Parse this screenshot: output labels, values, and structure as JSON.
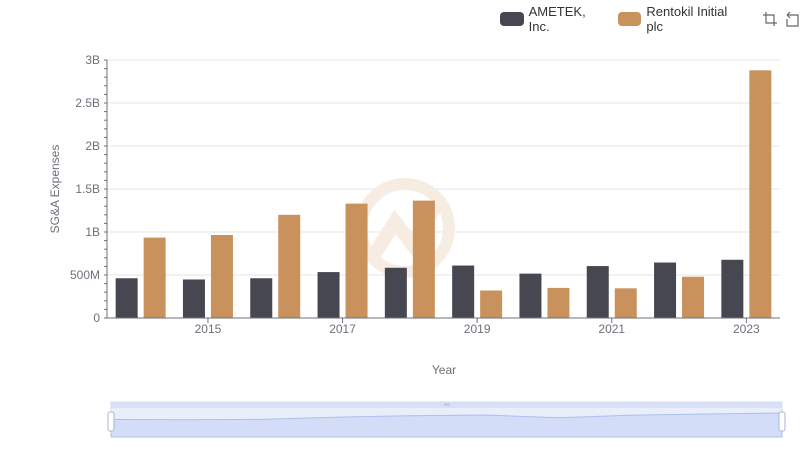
{
  "legend": {
    "items": [
      {
        "label": "AMETEK, Inc.",
        "color": "#474752"
      },
      {
        "label": "Rentokil Initial plc",
        "color": "#c9915c"
      }
    ]
  },
  "toolbox": {
    "icons": [
      "zoom-icon",
      "restore-icon"
    ]
  },
  "chart_data": {
    "type": "bar",
    "xlabel": "Year",
    "ylabel": "SG&A Expenses",
    "x": [
      2014,
      2015,
      2016,
      2017,
      2018,
      2019,
      2020,
      2021,
      2022,
      2023
    ],
    "x_tick_labels": [
      "2015",
      "2017",
      "2019",
      "2021",
      "2023"
    ],
    "y_tick_labels": [
      "0",
      "500M",
      "1B",
      "1.5B",
      "2B",
      "2.5B",
      "3B"
    ],
    "ylim": [
      0,
      3000000000
    ],
    "grid": true,
    "legend_position": "top-right",
    "series": [
      {
        "name": "AMETEK, Inc.",
        "color": "#474752",
        "values": [
          462000000,
          448000000,
          462000000,
          534000000,
          584000000,
          610000000,
          516000000,
          604000000,
          645000000,
          677000000
        ]
      },
      {
        "name": "Rentokil Initial plc",
        "color": "#c9915c",
        "values": [
          935000000,
          965000000,
          1200000000,
          1330000000,
          1365000000,
          320000000,
          350000000,
          345000000,
          480000000,
          2880000000
        ]
      }
    ],
    "datazoom": {
      "start": 0,
      "end": 100
    }
  }
}
